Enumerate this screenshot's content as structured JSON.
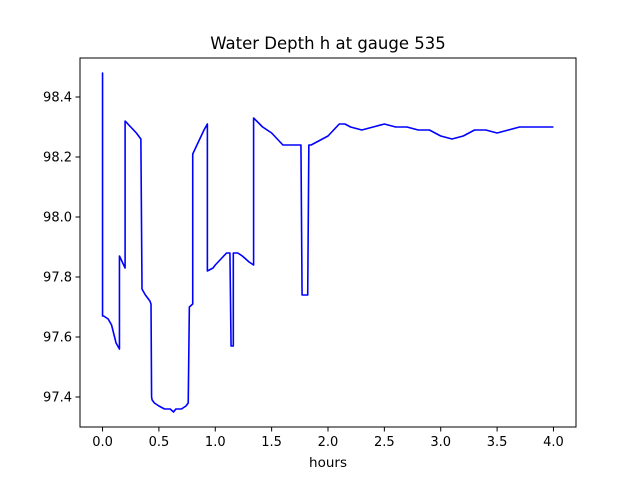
{
  "chart_data": {
    "type": "line",
    "title": "Water Depth h at gauge 535",
    "xlabel": "hours",
    "ylabel": "",
    "xlim": [
      -0.2,
      4.2
    ],
    "ylim": [
      97.3,
      98.53
    ],
    "xticks": [
      0.0,
      0.5,
      1.0,
      1.5,
      2.0,
      2.5,
      3.0,
      3.5,
      4.0
    ],
    "xtick_labels": [
      "0.0",
      "0.5",
      "1.0",
      "1.5",
      "2.0",
      "2.5",
      "3.0",
      "3.5",
      "4.0"
    ],
    "yticks": [
      97.4,
      97.6,
      97.8,
      98.0,
      98.2,
      98.4
    ],
    "ytick_labels": [
      "97.4",
      "97.6",
      "97.8",
      "98.0",
      "98.2",
      "98.4"
    ],
    "grid": false,
    "series": [
      {
        "color": "#0000ff",
        "x": [
          0.0,
          0.0,
          0.0,
          0.01,
          0.05,
          0.08,
          0.1,
          0.12,
          0.15,
          0.15,
          0.2,
          0.2,
          0.25,
          0.3,
          0.34,
          0.35,
          0.38,
          0.42,
          0.43,
          0.435,
          0.44,
          0.46,
          0.5,
          0.55,
          0.6,
          0.63,
          0.65,
          0.7,
          0.74,
          0.76,
          0.77,
          0.8,
          0.8,
          0.85,
          0.9,
          0.93,
          0.93,
          0.98,
          1.0,
          1.05,
          1.1,
          1.13,
          1.14,
          1.16,
          1.16,
          1.2,
          1.24,
          1.3,
          1.34,
          1.34,
          1.42,
          1.5,
          1.55,
          1.6,
          1.7,
          1.76,
          1.77,
          1.8,
          1.82,
          1.83,
          1.85,
          1.9,
          1.95,
          2.0,
          2.05,
          2.1,
          2.15,
          2.2,
          2.3,
          2.4,
          2.5,
          2.6,
          2.7,
          2.8,
          2.9,
          3.0,
          3.1,
          3.2,
          3.3,
          3.4,
          3.5,
          3.6,
          3.7,
          3.8,
          3.9,
          4.0
        ],
        "y": [
          98.0,
          98.48,
          97.67,
          97.67,
          97.66,
          97.64,
          97.61,
          97.58,
          97.56,
          97.87,
          97.83,
          98.32,
          98.3,
          98.28,
          98.26,
          97.76,
          97.74,
          97.72,
          97.71,
          97.4,
          97.39,
          97.38,
          97.37,
          97.36,
          97.36,
          97.35,
          97.36,
          97.36,
          97.37,
          97.38,
          97.7,
          97.71,
          98.21,
          98.25,
          98.29,
          98.31,
          97.82,
          97.83,
          97.84,
          97.86,
          97.88,
          97.88,
          97.57,
          97.57,
          97.88,
          97.88,
          97.87,
          97.85,
          97.84,
          98.33,
          98.3,
          98.28,
          98.26,
          98.24,
          98.24,
          98.24,
          97.74,
          97.74,
          97.74,
          98.24,
          98.24,
          98.25,
          98.26,
          98.27,
          98.29,
          98.31,
          98.31,
          98.3,
          98.29,
          98.3,
          98.31,
          98.3,
          98.3,
          98.29,
          98.29,
          98.27,
          98.26,
          98.27,
          98.29,
          98.29,
          98.28,
          98.29,
          98.3,
          98.3,
          98.3,
          98.3
        ]
      }
    ]
  }
}
